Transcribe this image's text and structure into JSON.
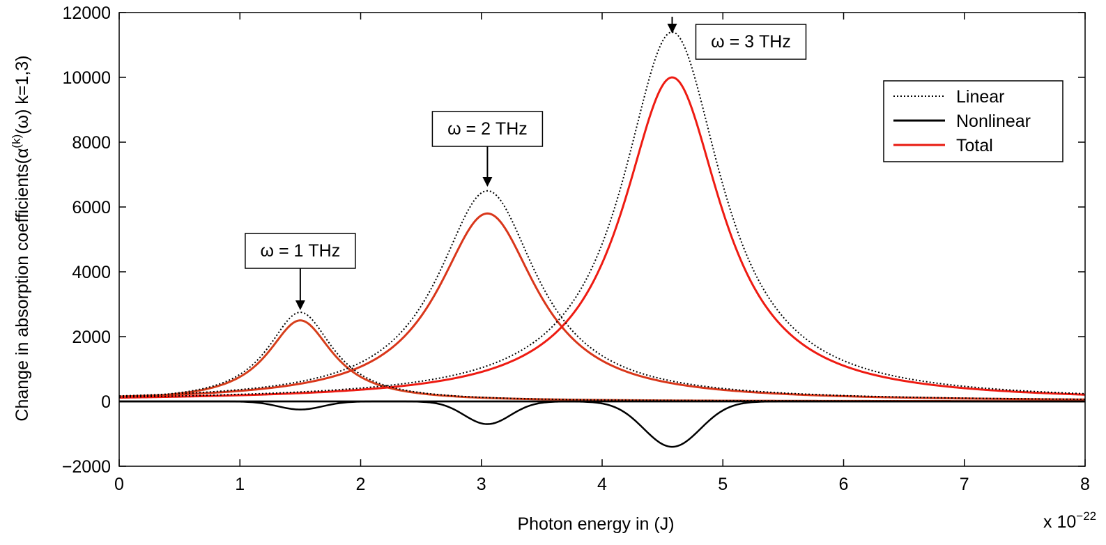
{
  "chart_data": {
    "type": "line",
    "title": "",
    "xlabel": "Photon energy  in (J)",
    "ylabel": "Change in absorption coefficients(α(k)(ω) k=1,3)",
    "ylabel_parts": {
      "prefix": "Change in absorption coefficients(α",
      "superscript": "(k)",
      "suffix": "(ω) k=1,3)"
    },
    "x_multiplier": {
      "base": "x 10",
      "exponent": "−22"
    },
    "xlim": [
      0,
      8
    ],
    "ylim": [
      -2000,
      12000
    ],
    "xticks": [
      0,
      1,
      2,
      3,
      4,
      5,
      6,
      7,
      8
    ],
    "yticks": [
      -2000,
      0,
      2000,
      4000,
      6000,
      8000,
      10000,
      12000
    ],
    "ytick_labels": [
      "−2000",
      "0",
      "2000",
      "4000",
      "6000",
      "8000",
      "10000",
      "12000"
    ],
    "grid": false,
    "legend_position": "top-right",
    "series_styles": [
      {
        "name": "Linear",
        "color": "#000000",
        "style": "dotted"
      },
      {
        "name": "Nonlinear",
        "color": "#000000",
        "style": "solid"
      },
      {
        "name": "Total",
        "color": "#e8190f",
        "style": "solid"
      }
    ],
    "curves": [
      {
        "omega": "1 THz",
        "center": 1.5,
        "linear_peak": 2750,
        "total_peak": 2500,
        "nonlinear_min": -250,
        "half_width": 0.33,
        "nonlinear_half_width": 0.26,
        "total_color": "#d63f1c"
      },
      {
        "omega": "2 THz",
        "center": 3.05,
        "linear_peak": 6500,
        "total_peak": 5800,
        "nonlinear_min": -700,
        "half_width": 0.5,
        "nonlinear_half_width": 0.27,
        "total_color": "#d9361a"
      },
      {
        "omega": "3 THz",
        "center": 4.58,
        "linear_peak": 11400,
        "total_peak": 10000,
        "nonlinear_min": -1400,
        "half_width": 0.5,
        "nonlinear_half_width": 0.33,
        "total_color": "#ee1b12"
      }
    ],
    "annotations": [
      {
        "text": "ω = 1 THz",
        "x": 1.5,
        "peak": 2750
      },
      {
        "text": "ω = 2 THz",
        "x": 3.05,
        "peak": 6500
      },
      {
        "text": "ω = 3 THz",
        "x": 4.58,
        "peak": 11400
      }
    ]
  }
}
